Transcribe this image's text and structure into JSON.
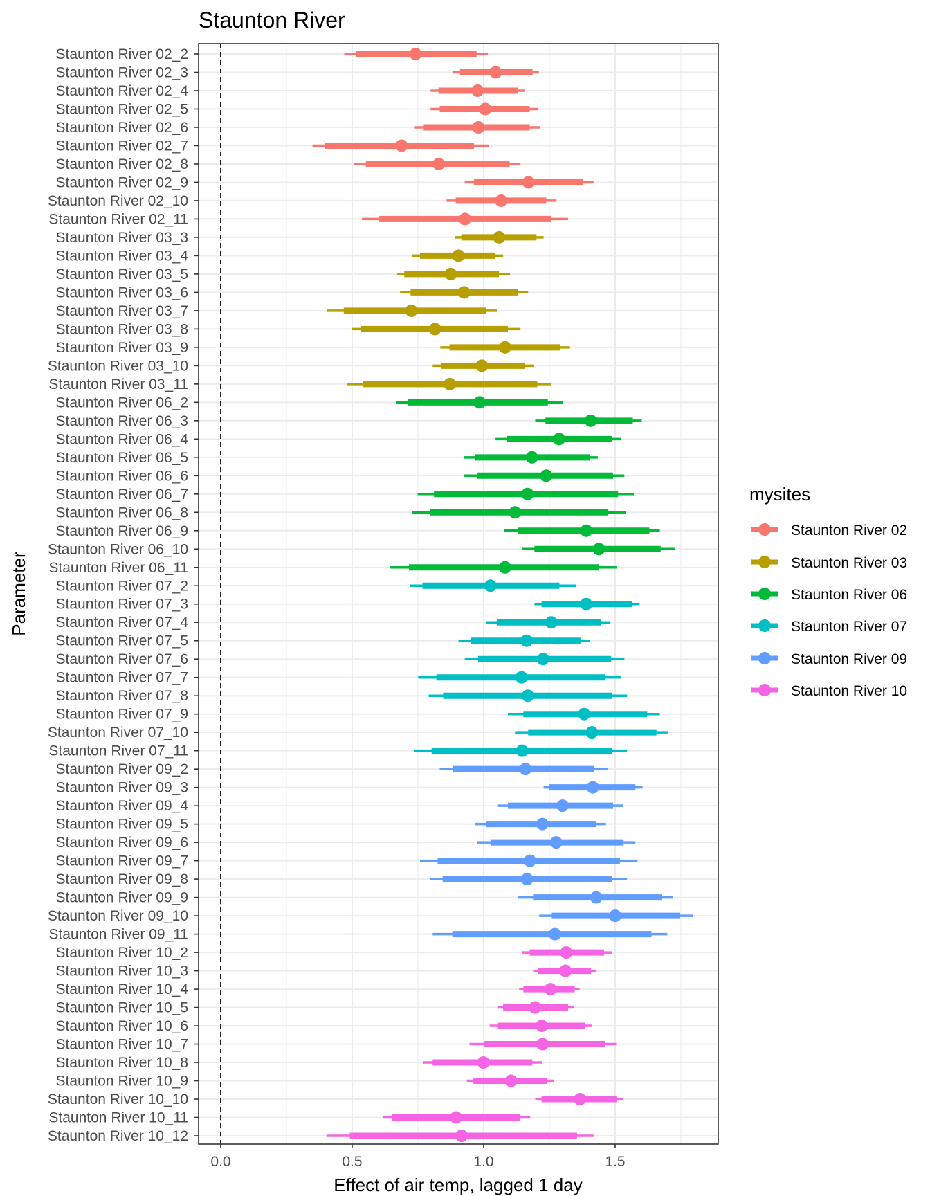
{
  "chart_data": {
    "type": "interval",
    "title": "Staunton River",
    "xlabel": "Effect of air temp, lagged 1 day",
    "ylabel": "Parameter",
    "xlim": [
      -0.084,
      1.892
    ],
    "xticks": [
      "0.0",
      "0.5",
      "1.0",
      "1.5"
    ],
    "xtick_values": [
      0,
      0.5,
      1.0,
      1.5
    ],
    "reference_line": 0,
    "grid": true,
    "legend": {
      "title": "mysites",
      "position": "right",
      "entries": [
        "Staunton River 02",
        "Staunton River 03",
        "Staunton River 06",
        "Staunton River 07",
        "Staunton River 09",
        "Staunton River 10"
      ],
      "colors": [
        "#F8766D",
        "#B79F00",
        "#00BA38",
        "#00BFC4",
        "#619CFF",
        "#F564E3"
      ]
    },
    "columns": [
      "parameter",
      "site_index",
      "outer_low",
      "inner_low",
      "estimate",
      "inner_high",
      "outer_high"
    ],
    "rows": [
      [
        "Staunton River 02_2",
        0,
        0.47,
        0.515,
        0.741,
        0.973,
        1.016
      ],
      [
        "Staunton River 02_3",
        0,
        0.881,
        0.91,
        1.046,
        1.186,
        1.21
      ],
      [
        "Staunton River 02_4",
        0,
        0.798,
        0.828,
        0.977,
        1.129,
        1.157
      ],
      [
        "Staunton River 02_5",
        0,
        0.798,
        0.833,
        1.006,
        1.175,
        1.208
      ],
      [
        "Staunton River 02_6",
        0,
        0.738,
        0.772,
        0.98,
        1.175,
        1.216
      ],
      [
        "Staunton River 02_7",
        0,
        0.349,
        0.396,
        0.688,
        0.963,
        1.021
      ],
      [
        "Staunton River 02_8",
        0,
        0.508,
        0.552,
        0.829,
        1.099,
        1.14
      ],
      [
        "Staunton River 02_9",
        0,
        0.928,
        0.963,
        1.17,
        1.379,
        1.418
      ],
      [
        "Staunton River 02_10",
        0,
        0.859,
        0.894,
        1.066,
        1.238,
        1.277
      ],
      [
        "Staunton River 02_11",
        0,
        0.537,
        0.603,
        0.929,
        1.257,
        1.321
      ],
      [
        "Staunton River 03_3",
        1,
        0.891,
        0.915,
        1.059,
        1.201,
        1.228
      ],
      [
        "Staunton River 03_4",
        1,
        0.729,
        0.758,
        0.904,
        1.045,
        1.074
      ],
      [
        "Staunton River 03_5",
        1,
        0.671,
        0.698,
        0.875,
        1.058,
        1.1
      ],
      [
        "Staunton River 03_6",
        1,
        0.682,
        0.722,
        0.926,
        1.129,
        1.169
      ],
      [
        "Staunton River 03_7",
        1,
        0.404,
        0.468,
        0.725,
        1.008,
        1.05
      ],
      [
        "Staunton River 03_8",
        1,
        0.5,
        0.534,
        0.815,
        1.092,
        1.14
      ],
      [
        "Staunton River 03_9",
        1,
        0.835,
        0.87,
        1.081,
        1.291,
        1.328
      ],
      [
        "Staunton River 03_10",
        1,
        0.806,
        0.838,
        0.993,
        1.158,
        1.191
      ],
      [
        "Staunton River 03_11",
        1,
        0.481,
        0.541,
        0.871,
        1.204,
        1.257
      ],
      [
        "Staunton River 06_2",
        2,
        0.666,
        0.711,
        0.985,
        1.244,
        1.302
      ],
      [
        "Staunton River 06_3",
        2,
        1.196,
        1.235,
        1.407,
        1.567,
        1.601
      ],
      [
        "Staunton River 06_4",
        2,
        1.045,
        1.087,
        1.287,
        1.487,
        1.524
      ],
      [
        "Staunton River 06_5",
        2,
        0.926,
        0.968,
        1.183,
        1.403,
        1.434
      ],
      [
        "Staunton River 06_6",
        2,
        0.926,
        0.974,
        1.238,
        1.492,
        1.535
      ],
      [
        "Staunton River 06_7",
        2,
        0.749,
        0.811,
        1.167,
        1.511,
        1.571
      ],
      [
        "Staunton River 06_8",
        2,
        0.729,
        0.796,
        1.119,
        1.474,
        1.54
      ],
      [
        "Staunton River 06_9",
        2,
        1.079,
        1.129,
        1.39,
        1.63,
        1.67
      ],
      [
        "Staunton River 06_10",
        2,
        1.145,
        1.193,
        1.438,
        1.673,
        1.726
      ],
      [
        "Staunton River 06_11",
        2,
        0.645,
        0.716,
        1.081,
        1.437,
        1.505
      ],
      [
        "Staunton River 07_2",
        3,
        0.719,
        0.767,
        1.026,
        1.288,
        1.35
      ],
      [
        "Staunton River 07_3",
        3,
        1.193,
        1.22,
        1.39,
        1.564,
        1.593
      ],
      [
        "Staunton River 07_4",
        3,
        1.008,
        1.05,
        1.257,
        1.445,
        1.482
      ],
      [
        "Staunton River 07_5",
        3,
        0.904,
        0.95,
        1.163,
        1.368,
        1.405
      ],
      [
        "Staunton River 07_6",
        3,
        0.928,
        0.979,
        1.226,
        1.485,
        1.535
      ],
      [
        "Staunton River 07_7",
        3,
        0.751,
        0.82,
        1.144,
        1.463,
        1.524
      ],
      [
        "Staunton River 07_8",
        3,
        0.791,
        0.846,
        1.168,
        1.489,
        1.545
      ],
      [
        "Staunton River 07_9",
        3,
        1.092,
        1.151,
        1.382,
        1.622,
        1.67
      ],
      [
        "Staunton River 07_10",
        3,
        1.119,
        1.169,
        1.411,
        1.657,
        1.702
      ],
      [
        "Staunton River 07_11",
        3,
        0.735,
        0.802,
        1.146,
        1.489,
        1.545
      ],
      [
        "Staunton River 09_2",
        4,
        0.833,
        0.883,
        1.159,
        1.421,
        1.471
      ],
      [
        "Staunton River 09_3",
        4,
        1.228,
        1.249,
        1.415,
        1.577,
        1.604
      ],
      [
        "Staunton River 09_4",
        4,
        1.052,
        1.092,
        1.3,
        1.492,
        1.529
      ],
      [
        "Staunton River 09_5",
        4,
        0.968,
        1.008,
        1.223,
        1.429,
        1.465
      ],
      [
        "Staunton River 09_6",
        4,
        0.974,
        1.026,
        1.276,
        1.532,
        1.577
      ],
      [
        "Staunton River 09_7",
        4,
        0.758,
        0.825,
        1.176,
        1.518,
        1.585
      ],
      [
        "Staunton River 09_8",
        4,
        0.796,
        0.844,
        1.165,
        1.489,
        1.545
      ],
      [
        "Staunton River 09_9",
        4,
        1.132,
        1.188,
        1.428,
        1.677,
        1.721
      ],
      [
        "Staunton River 09_10",
        4,
        1.211,
        1.259,
        1.5,
        1.746,
        1.797
      ],
      [
        "Staunton River 09_11",
        4,
        0.806,
        0.881,
        1.271,
        1.638,
        1.698
      ],
      [
        "Staunton River 10_2",
        5,
        1.145,
        1.175,
        1.314,
        1.458,
        1.487
      ],
      [
        "Staunton River 10_3",
        5,
        1.188,
        1.206,
        1.311,
        1.408,
        1.426
      ],
      [
        "Staunton River 10_4",
        5,
        1.135,
        1.151,
        1.254,
        1.346,
        1.365
      ],
      [
        "Staunton River 10_5",
        5,
        1.052,
        1.074,
        1.195,
        1.321,
        1.344
      ],
      [
        "Staunton River 10_6",
        5,
        1.023,
        1.052,
        1.221,
        1.386,
        1.412
      ],
      [
        "Staunton River 10_7",
        5,
        0.946,
        1.003,
        1.224,
        1.461,
        1.504
      ],
      [
        "Staunton River 10_8",
        5,
        0.769,
        0.806,
        0.999,
        1.185,
        1.222
      ],
      [
        "Staunton River 10_9",
        5,
        0.936,
        0.961,
        1.104,
        1.241,
        1.268
      ],
      [
        "Staunton River 10_10",
        5,
        1.196,
        1.22,
        1.366,
        1.505,
        1.532
      ],
      [
        "Staunton River 10_11",
        5,
        0.618,
        0.652,
        0.895,
        1.138,
        1.177
      ],
      [
        "Staunton River 10_12",
        5,
        0.402,
        0.491,
        0.916,
        1.355,
        1.418
      ]
    ]
  }
}
